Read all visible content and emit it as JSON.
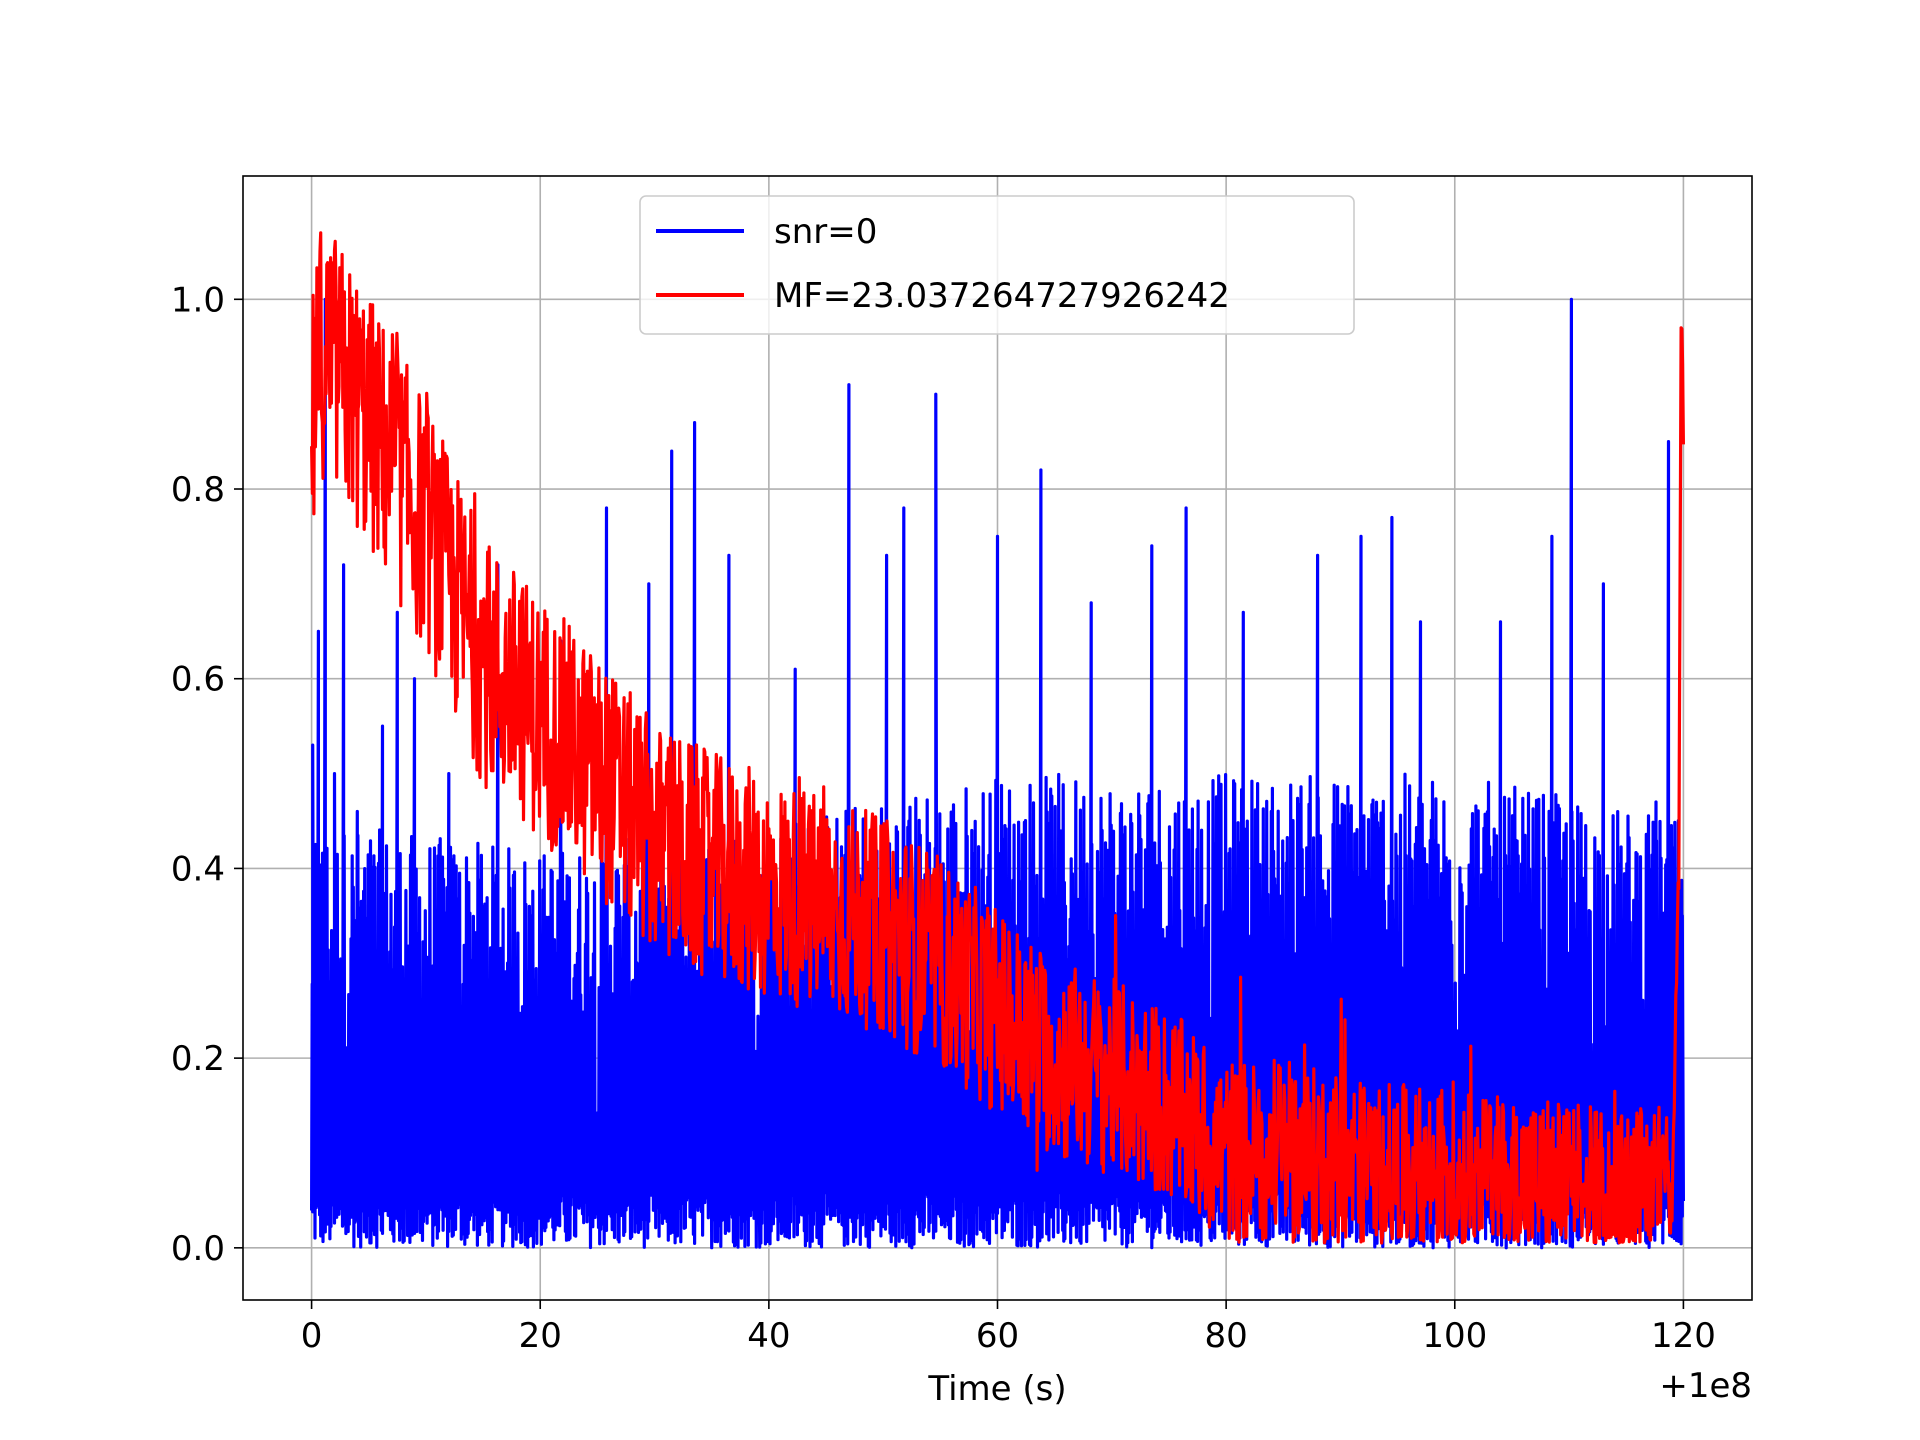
{
  "chart_data": {
    "type": "line",
    "title": "",
    "xlabel": "Time (s)",
    "ylabel": "",
    "x_offset_label": "+1e8",
    "xlim": [
      -6,
      126
    ],
    "ylim": [
      -0.055,
      1.13
    ],
    "xticks": [
      0,
      20,
      40,
      60,
      80,
      100,
      120
    ],
    "xtick_labels": [
      "0",
      "20",
      "40",
      "60",
      "80",
      "100",
      "120"
    ],
    "yticks": [
      0.0,
      0.2,
      0.4,
      0.6,
      0.8,
      1.0
    ],
    "ytick_labels": [
      "0.0",
      "0.2",
      "0.4",
      "0.6",
      "0.8",
      "1.0"
    ],
    "grid": true,
    "legend_position": "top-center",
    "series": [
      {
        "name": "snr=0",
        "color": "#0000ff",
        "x_range": [
          0,
          120
        ],
        "baseline_min": 0.0,
        "envelope_typical": [
          [
            0,
            0.45
          ],
          [
            20,
            0.42
          ],
          [
            40,
            0.45
          ],
          [
            60,
            0.5
          ],
          [
            80,
            0.5
          ],
          [
            100,
            0.5
          ],
          [
            120,
            0.45
          ]
        ],
        "peaks": [
          {
            "x": 0.1,
            "y": 0.53
          },
          {
            "x": 0.6,
            "y": 0.65
          },
          {
            "x": 1.2,
            "y": 1.0
          },
          {
            "x": 2.0,
            "y": 0.5
          },
          {
            "x": 2.8,
            "y": 0.72
          },
          {
            "x": 4.0,
            "y": 0.46
          },
          {
            "x": 6.2,
            "y": 0.55
          },
          {
            "x": 7.5,
            "y": 0.67
          },
          {
            "x": 9.0,
            "y": 0.6
          },
          {
            "x": 12.0,
            "y": 0.5
          },
          {
            "x": 16.3,
            "y": 0.72
          },
          {
            "x": 21.8,
            "y": 0.64
          },
          {
            "x": 25.8,
            "y": 0.78
          },
          {
            "x": 29.5,
            "y": 0.7
          },
          {
            "x": 31.5,
            "y": 0.84
          },
          {
            "x": 33.5,
            "y": 0.87
          },
          {
            "x": 36.5,
            "y": 0.73
          },
          {
            "x": 42.3,
            "y": 0.61
          },
          {
            "x": 47.0,
            "y": 0.91
          },
          {
            "x": 50.3,
            "y": 0.73
          },
          {
            "x": 51.8,
            "y": 0.78
          },
          {
            "x": 54.6,
            "y": 0.9
          },
          {
            "x": 60.0,
            "y": 0.75
          },
          {
            "x": 63.8,
            "y": 0.82
          },
          {
            "x": 68.2,
            "y": 0.68
          },
          {
            "x": 73.5,
            "y": 0.74
          },
          {
            "x": 76.5,
            "y": 0.78
          },
          {
            "x": 81.5,
            "y": 0.67
          },
          {
            "x": 88.0,
            "y": 0.73
          },
          {
            "x": 91.8,
            "y": 0.75
          },
          {
            "x": 94.5,
            "y": 0.77
          },
          {
            "x": 97.0,
            "y": 0.66
          },
          {
            "x": 104.0,
            "y": 0.66
          },
          {
            "x": 108.5,
            "y": 0.75
          },
          {
            "x": 110.2,
            "y": 1.0
          },
          {
            "x": 113.0,
            "y": 0.7
          },
          {
            "x": 117.6,
            "y": 0.47
          },
          {
            "x": 118.7,
            "y": 0.85
          },
          {
            "x": 119.9,
            "y": 0.35
          }
        ]
      },
      {
        "name": "MF=23.037264727926242",
        "color": "#ff0000",
        "x_range": [
          0,
          120
        ],
        "trend": [
          {
            "x": 0,
            "y": 0.86
          },
          {
            "x": 1,
            "y": 0.95
          },
          {
            "x": 5,
            "y": 0.87
          },
          {
            "x": 10,
            "y": 0.76
          },
          {
            "x": 15,
            "y": 0.62
          },
          {
            "x": 20,
            "y": 0.56
          },
          {
            "x": 25,
            "y": 0.5
          },
          {
            "x": 30,
            "y": 0.43
          },
          {
            "x": 35,
            "y": 0.4
          },
          {
            "x": 40,
            "y": 0.38
          },
          {
            "x": 45,
            "y": 0.36
          },
          {
            "x": 50,
            "y": 0.34
          },
          {
            "x": 55,
            "y": 0.3
          },
          {
            "x": 60,
            "y": 0.25
          },
          {
            "x": 65,
            "y": 0.2
          },
          {
            "x": 70,
            "y": 0.18
          },
          {
            "x": 75,
            "y": 0.15
          },
          {
            "x": 80,
            "y": 0.1
          },
          {
            "x": 85,
            "y": 0.1
          },
          {
            "x": 90,
            "y": 0.09
          },
          {
            "x": 95,
            "y": 0.08
          },
          {
            "x": 100,
            "y": 0.08
          },
          {
            "x": 105,
            "y": 0.07
          },
          {
            "x": 110,
            "y": 0.07
          },
          {
            "x": 115,
            "y": 0.06
          },
          {
            "x": 119,
            "y": 0.08
          },
          {
            "x": 119.6,
            "y": 0.4
          },
          {
            "x": 119.8,
            "y": 0.99
          },
          {
            "x": 120,
            "y": 0.87
          }
        ],
        "max": {
          "x": 0.8,
          "y": 1.07
        }
      }
    ]
  }
}
